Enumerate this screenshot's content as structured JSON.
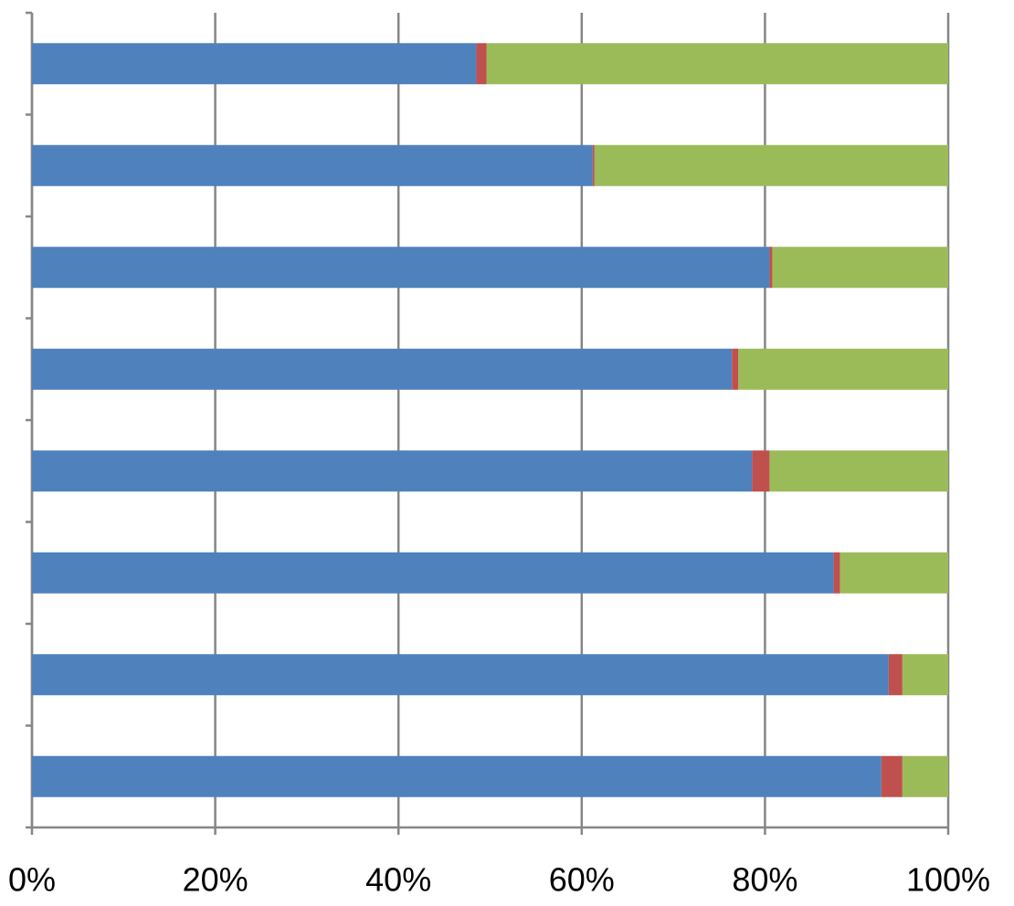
{
  "chart_data": {
    "type": "stacked-bar-horizontal",
    "categories": [
      null,
      null,
      null,
      null,
      null,
      null,
      null,
      null
    ],
    "series": [
      {
        "color": "#4f81bd",
        "values": [
          48.5,
          61.2,
          80.5,
          76.4,
          78.6,
          87.5,
          93.5,
          92.7
        ]
      },
      {
        "color": "#c0504d",
        "values": [
          1.1,
          0.2,
          0.3,
          0.7,
          1.9,
          0.7,
          1.5,
          2.3
        ]
      },
      {
        "color": "#9bbb59",
        "values": [
          50.4,
          38.6,
          19.2,
          22.9,
          19.5,
          11.8,
          5.0,
          5.0
        ]
      }
    ],
    "xlim": [
      0,
      100
    ],
    "xticks": [
      {
        "value": 0,
        "label": "0%"
      },
      {
        "value": 20,
        "label": "20%"
      },
      {
        "value": 40,
        "label": "40%"
      },
      {
        "value": 60,
        "label": "60%"
      },
      {
        "value": 80,
        "label": "80%"
      },
      {
        "value": 100,
        "label": "100%"
      }
    ],
    "grid": true
  }
}
